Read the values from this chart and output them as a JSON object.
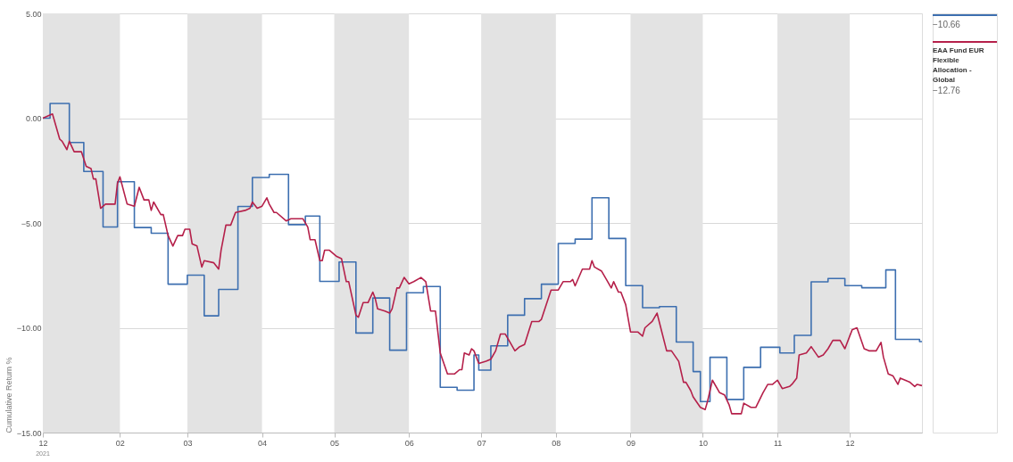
{
  "chart_data": {
    "type": "line",
    "ylabel": "Cumulative Return %",
    "xlim": [
      "2021-12-31",
      "2022-12-31"
    ],
    "xticks": [
      {
        "value": "2021-12-31",
        "label": "12"
      },
      {
        "value": "2022-02-01",
        "label": "02"
      },
      {
        "value": "2022-03-01",
        "label": "03"
      },
      {
        "value": "2022-04-01",
        "label": "04"
      },
      {
        "value": "2022-05-01",
        "label": "05"
      },
      {
        "value": "2022-06-01",
        "label": "06"
      },
      {
        "value": "2022-07-01",
        "label": "07"
      },
      {
        "value": "2022-08-01",
        "label": "08"
      },
      {
        "value": "2022-09-01",
        "label": "09"
      },
      {
        "value": "2022-10-01",
        "label": "10"
      },
      {
        "value": "2022-11-01",
        "label": "11"
      },
      {
        "value": "2022-12-01",
        "label": "12"
      }
    ],
    "ylim": [
      -15,
      5
    ],
    "yticks": [
      {
        "value": 5,
        "label": "5.00"
      },
      {
        "value": 0,
        "label": "0.00"
      },
      {
        "value": -5,
        "label": "−5.00"
      },
      {
        "value": -10,
        "label": "−10.00"
      },
      {
        "value": -15,
        "label": "−15.00"
      }
    ],
    "grid": "y",
    "legend": "top right",
    "annotations": [
      "2021",
      "−10.66",
      "−12.76"
    ],
    "bands": [
      {
        "axis": "x",
        "from": "2021-12-31",
        "to": "2022-02-01",
        "color": "#e3e3e3"
      },
      {
        "axis": "x",
        "from": "2022-03-01",
        "to": "2022-04-01",
        "color": "#e3e3e3"
      },
      {
        "axis": "x",
        "from": "2022-05-01",
        "to": "2022-06-01",
        "color": "#e3e3e3"
      },
      {
        "axis": "x",
        "from": "2022-07-01",
        "to": "2022-08-01",
        "color": "#e3e3e3"
      },
      {
        "axis": "x",
        "from": "2022-09-01",
        "to": "2022-10-01",
        "color": "#e3e3e3"
      },
      {
        "axis": "x",
        "from": "2022-11-01",
        "to": "2022-12-01",
        "color": "#e3e3e3"
      }
    ],
    "series": [
      {
        "type": "step",
        "color": "#3d6fb0",
        "x": [
          "2021-12-31",
          "2022-01-03",
          "2022-01-11",
          "2022-01-17",
          "2022-01-25",
          "2022-01-31",
          "2022-02-07",
          "2022-02-14",
          "2022-02-21",
          "2022-03-01",
          "2022-03-08",
          "2022-03-14",
          "2022-03-22",
          "2022-03-28",
          "2022-04-04",
          "2022-04-12",
          "2022-04-19",
          "2022-04-25",
          "2022-05-03",
          "2022-05-10",
          "2022-05-17",
          "2022-05-24",
          "2022-05-31",
          "2022-06-07",
          "2022-06-14",
          "2022-06-21",
          "2022-06-28",
          "2022-06-30",
          "2022-07-05",
          "2022-07-12",
          "2022-07-19",
          "2022-07-26",
          "2022-08-02",
          "2022-08-09",
          "2022-08-16",
          "2022-08-23",
          "2022-08-30",
          "2022-09-06",
          "2022-09-13",
          "2022-09-20",
          "2022-09-27",
          "2022-09-30",
          "2022-10-04",
          "2022-10-11",
          "2022-10-18",
          "2022-10-25",
          "2022-11-02",
          "2022-11-08",
          "2022-11-15",
          "2022-11-22",
          "2022-11-29",
          "2022-12-06",
          "2022-12-16",
          "2022-12-20",
          "2022-12-30",
          "2022-12-31"
        ],
        "values": [
          0,
          0.7,
          -1.16,
          -2.54,
          -5.19,
          -3.03,
          -5.22,
          -5.49,
          -7.92,
          -7.49,
          -9.43,
          -8.17,
          -4.21,
          -2.83,
          -2.68,
          -5.08,
          -4.67,
          -7.79,
          -6.86,
          -10.25,
          -8.58,
          -11.07,
          -8.33,
          -8.03,
          -12.84,
          -12.98,
          -11.3,
          -12.02,
          -10.86,
          -9.4,
          -8.61,
          -7.92,
          -5.98,
          -5.77,
          -3.8,
          -5.74,
          -7.99,
          -9.04,
          -8.99,
          -10.68,
          -12.09,
          -13.52,
          -11.41,
          -13.42,
          -11.89,
          -10.93,
          -11.2,
          -10.36,
          -7.81,
          -7.65,
          -7.99,
          -8.09,
          -7.24,
          -10.55,
          -10.66,
          -10.66
        ]
      },
      {
        "type": "line",
        "name": "EAA Fund EUR Flexible Allocation - Global",
        "color": "#b5204a",
        "x": [
          "2021-12-31",
          "2022-01-04",
          "2022-01-07",
          "2022-01-08",
          "2022-01-10",
          "2022-01-11",
          "2022-01-13",
          "2022-01-16",
          "2022-01-18",
          "2022-01-20",
          "2022-01-21",
          "2022-01-22",
          "2022-01-24",
          "2022-01-26",
          "2022-01-30",
          "2022-01-31",
          "2022-02-01",
          "2022-02-04",
          "2022-02-07",
          "2022-02-09",
          "2022-02-11",
          "2022-02-13",
          "2022-02-14",
          "2022-02-15",
          "2022-02-18",
          "2022-02-19",
          "2022-02-21",
          "2022-02-23",
          "2022-02-25",
          "2022-02-27",
          "2022-02-28",
          "2022-03-02",
          "2022-03-03",
          "2022-03-05",
          "2022-03-07",
          "2022-03-08",
          "2022-03-12",
          "2022-03-14",
          "2022-03-15",
          "2022-03-17",
          "2022-03-19",
          "2022-03-21",
          "2022-03-25",
          "2022-03-27",
          "2022-03-28",
          "2022-03-30",
          "2022-04-01",
          "2022-04-03",
          "2022-04-04",
          "2022-04-06",
          "2022-04-07",
          "2022-04-11",
          "2022-04-13",
          "2022-04-18",
          "2022-04-20",
          "2022-04-21",
          "2022-04-23",
          "2022-04-25",
          "2022-04-26",
          "2022-04-27",
          "2022-04-29",
          "2022-05-02",
          "2022-05-04",
          "2022-05-06",
          "2022-05-07",
          "2022-05-10",
          "2022-05-11",
          "2022-05-13",
          "2022-05-15",
          "2022-05-17",
          "2022-05-18",
          "2022-05-19",
          "2022-05-22",
          "2022-05-24",
          "2022-05-25",
          "2022-05-27",
          "2022-05-28",
          "2022-05-30",
          "2022-06-01",
          "2022-06-03",
          "2022-06-06",
          "2022-06-08",
          "2022-06-10",
          "2022-06-12",
          "2022-06-14",
          "2022-06-17",
          "2022-06-20",
          "2022-06-22",
          "2022-06-23",
          "2022-06-24",
          "2022-06-26",
          "2022-06-27",
          "2022-06-28",
          "2022-06-30",
          "2022-07-03",
          "2022-07-05",
          "2022-07-07",
          "2022-07-09",
          "2022-07-11",
          "2022-07-13",
          "2022-07-15",
          "2022-07-17",
          "2022-07-19",
          "2022-07-22",
          "2022-07-25",
          "2022-07-26",
          "2022-07-30",
          "2022-08-02",
          "2022-08-04",
          "2022-08-07",
          "2022-08-08",
          "2022-08-09",
          "2022-08-12",
          "2022-08-15",
          "2022-08-16",
          "2022-08-17",
          "2022-08-20",
          "2022-08-22",
          "2022-08-24",
          "2022-08-25",
          "2022-08-27",
          "2022-08-28",
          "2022-08-30",
          "2022-09-01",
          "2022-09-04",
          "2022-09-06",
          "2022-09-07",
          "2022-09-10",
          "2022-09-12",
          "2022-09-14",
          "2022-09-16",
          "2022-09-18",
          "2022-09-21",
          "2022-09-23",
          "2022-09-24",
          "2022-09-26",
          "2022-09-27",
          "2022-09-30",
          "2022-10-02",
          "2022-10-03",
          "2022-10-05",
          "2022-10-08",
          "2022-10-10",
          "2022-10-12",
          "2022-10-13",
          "2022-10-17",
          "2022-10-18",
          "2022-10-21",
          "2022-10-23",
          "2022-10-26",
          "2022-10-28",
          "2022-10-30",
          "2022-11-01",
          "2022-11-03",
          "2022-11-06",
          "2022-11-07",
          "2022-11-09",
          "2022-11-10",
          "2022-11-13",
          "2022-11-15",
          "2022-11-18",
          "2022-11-20",
          "2022-11-22",
          "2022-11-24",
          "2022-11-27",
          "2022-11-29",
          "2022-12-02",
          "2022-12-04",
          "2022-12-07",
          "2022-12-09",
          "2022-12-12",
          "2022-12-14",
          "2022-12-15",
          "2022-12-17",
          "2022-12-19",
          "2022-12-21",
          "2022-12-22",
          "2022-12-26",
          "2022-12-28",
          "2022-12-29",
          "2022-12-31"
        ],
        "values": [
          0,
          0.2,
          -1.0,
          -1.1,
          -1.5,
          -1.1,
          -1.6,
          -1.6,
          -2.3,
          -2.4,
          -2.9,
          -2.9,
          -4.3,
          -4.1,
          -4.1,
          -3.1,
          -2.8,
          -4.1,
          -4.2,
          -3.3,
          -3.9,
          -3.9,
          -4.4,
          -4.0,
          -4.6,
          -4.6,
          -5.6,
          -6.1,
          -5.6,
          -5.6,
          -5.3,
          -5.3,
          -6.0,
          -6.1,
          -7.1,
          -6.8,
          -6.9,
          -7.2,
          -6.3,
          -5.1,
          -5.1,
          -4.5,
          -4.4,
          -4.3,
          -4.0,
          -4.3,
          -4.2,
          -3.8,
          -4.1,
          -4.5,
          -4.5,
          -4.9,
          -4.8,
          -4.8,
          -5.2,
          -5.8,
          -5.8,
          -6.8,
          -6.8,
          -6.3,
          -6.3,
          -6.6,
          -6.7,
          -7.8,
          -7.8,
          -9.4,
          -9.5,
          -8.8,
          -8.8,
          -8.3,
          -8.6,
          -9.1,
          -9.2,
          -9.3,
          -9.1,
          -8.1,
          -8.1,
          -7.6,
          -7.9,
          -7.8,
          -7.6,
          -7.8,
          -9.2,
          -9.2,
          -11.2,
          -12.2,
          -12.2,
          -12.0,
          -12.0,
          -11.2,
          -11.3,
          -11.0,
          -11.1,
          -11.7,
          -11.6,
          -11.5,
          -11.1,
          -10.3,
          -10.3,
          -10.7,
          -11.1,
          -10.9,
          -10.8,
          -9.7,
          -9.7,
          -9.6,
          -8.2,
          -8.2,
          -7.8,
          -7.8,
          -7.7,
          -8.0,
          -7.2,
          -7.2,
          -6.8,
          -7.1,
          -7.3,
          -7.7,
          -8.1,
          -7.8,
          -8.3,
          -8.3,
          -8.9,
          -10.2,
          -10.2,
          -10.4,
          -10.0,
          -9.7,
          -9.3,
          -10.2,
          -11.1,
          -11.1,
          -11.6,
          -12.6,
          -12.6,
          -13.0,
          -13.3,
          -13.8,
          -13.9,
          -13.5,
          -12.5,
          -13.1,
          -13.2,
          -13.7,
          -14.1,
          -14.1,
          -13.6,
          -13.8,
          -13.8,
          -13.1,
          -12.7,
          -12.7,
          -12.5,
          -12.9,
          -12.8,
          -12.7,
          -12.4,
          -11.3,
          -11.2,
          -10.9,
          -11.4,
          -11.3,
          -11.0,
          -10.6,
          -10.6,
          -11.0,
          -10.1,
          -10.0,
          -11.0,
          -11.1,
          -11.1,
          -10.7,
          -11.4,
          -12.2,
          -12.3,
          -12.7,
          -12.4,
          -12.6,
          -12.8,
          -12.7,
          -12.76
        ]
      }
    ]
  }
}
